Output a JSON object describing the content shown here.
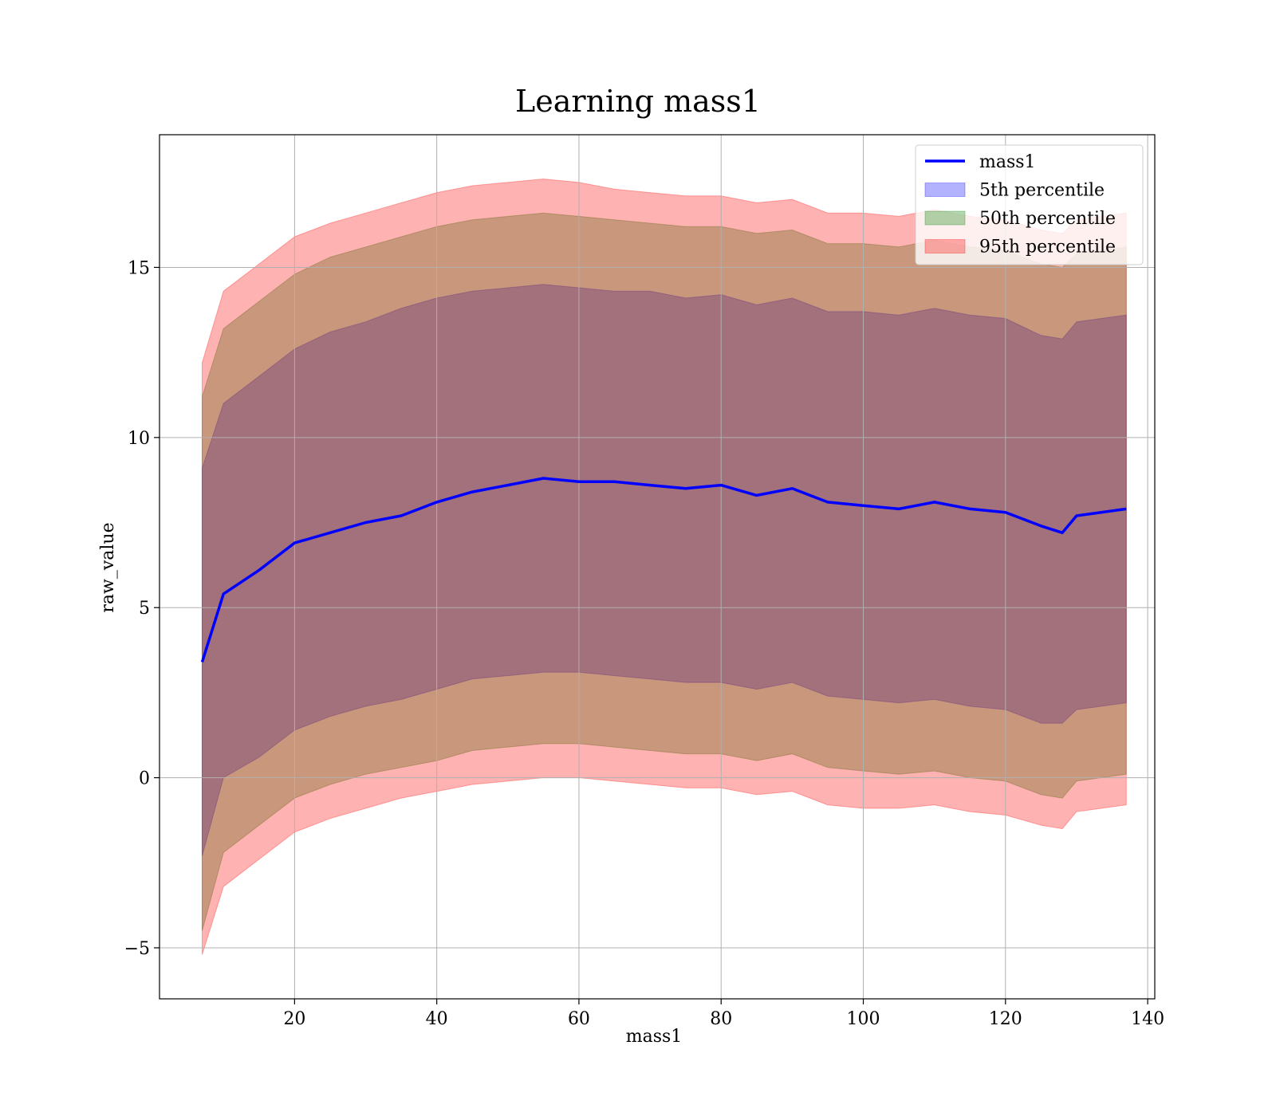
{
  "chart_data": {
    "type": "area",
    "title": "Learning mass1",
    "xlabel": "mass1",
    "ylabel": "raw_value",
    "xlim": [
      1,
      141
    ],
    "ylim": [
      -6.5,
      18.9
    ],
    "x_ticks": [
      20,
      40,
      60,
      80,
      100,
      120,
      140
    ],
    "y_ticks": [
      -5,
      0,
      5,
      10,
      15
    ],
    "x_tick_labels": [
      "20",
      "40",
      "60",
      "80",
      "100",
      "120",
      "140"
    ],
    "y_tick_labels": [
      "−5",
      "0",
      "5",
      "10",
      "15"
    ],
    "grid": true,
    "legend_position": "top-right",
    "legend": [
      {
        "label": "mass1",
        "kind": "line",
        "color": "#0000ff"
      },
      {
        "label": "5th percentile",
        "kind": "patch",
        "color": "#0000ff"
      },
      {
        "label": "50th percentile",
        "kind": "patch",
        "color": "#008000"
      },
      {
        "label": "95th percentile",
        "kind": "patch",
        "color": "#ff0000"
      }
    ],
    "x": [
      7,
      10,
      15,
      20,
      25,
      30,
      35,
      40,
      45,
      50,
      55,
      60,
      65,
      70,
      75,
      80,
      85,
      90,
      95,
      100,
      105,
      110,
      115,
      120,
      125,
      128,
      130,
      137
    ],
    "series": [
      {
        "name": "mass1",
        "kind": "line",
        "color": "#0000ff",
        "values": [
          3.4,
          5.4,
          6.1,
          6.9,
          7.2,
          7.5,
          7.7,
          8.1,
          8.4,
          8.6,
          8.8,
          8.7,
          8.7,
          8.6,
          8.5,
          8.6,
          8.3,
          8.5,
          8.1,
          8.0,
          7.9,
          8.1,
          7.9,
          7.8,
          7.4,
          7.2,
          7.7,
          7.9
        ]
      },
      {
        "name": "5th percentile",
        "kind": "band",
        "color": "#0000ff",
        "lower": [
          -2.3,
          0.0,
          0.6,
          1.4,
          1.8,
          2.1,
          2.3,
          2.6,
          2.9,
          3.0,
          3.1,
          3.1,
          3.0,
          2.9,
          2.8,
          2.8,
          2.6,
          2.8,
          2.4,
          2.3,
          2.2,
          2.3,
          2.1,
          2.0,
          1.6,
          1.6,
          2.0,
          2.2
        ],
        "upper": [
          9.1,
          11.0,
          11.8,
          12.6,
          13.1,
          13.4,
          13.8,
          14.1,
          14.3,
          14.4,
          14.5,
          14.4,
          14.3,
          14.3,
          14.1,
          14.2,
          13.9,
          14.1,
          13.7,
          13.7,
          13.6,
          13.8,
          13.6,
          13.5,
          13.0,
          12.9,
          13.4,
          13.6
        ]
      },
      {
        "name": "50th percentile",
        "kind": "band",
        "color": "#008000",
        "lower": [
          -4.5,
          -2.2,
          -1.4,
          -0.6,
          -0.2,
          0.1,
          0.3,
          0.5,
          0.8,
          0.9,
          1.0,
          1.0,
          0.9,
          0.8,
          0.7,
          0.7,
          0.5,
          0.7,
          0.3,
          0.2,
          0.1,
          0.2,
          0.0,
          -0.1,
          -0.5,
          -0.6,
          -0.1,
          0.1
        ],
        "upper": [
          11.2,
          13.2,
          14.0,
          14.8,
          15.3,
          15.6,
          15.9,
          16.2,
          16.4,
          16.5,
          16.6,
          16.5,
          16.4,
          16.3,
          16.2,
          16.2,
          16.0,
          16.1,
          15.7,
          15.7,
          15.6,
          15.8,
          15.6,
          15.5,
          15.1,
          15.0,
          15.4,
          15.6
        ]
      },
      {
        "name": "95th percentile",
        "kind": "band",
        "color": "#ff0000",
        "lower": [
          -5.2,
          -3.2,
          -2.4,
          -1.6,
          -1.2,
          -0.9,
          -0.6,
          -0.4,
          -0.2,
          -0.1,
          0.0,
          0.0,
          -0.1,
          -0.2,
          -0.3,
          -0.3,
          -0.5,
          -0.4,
          -0.8,
          -0.9,
          -0.9,
          -0.8,
          -1.0,
          -1.1,
          -1.4,
          -1.5,
          -1.0,
          -0.8
        ],
        "upper": [
          12.2,
          14.3,
          15.1,
          15.9,
          16.3,
          16.6,
          16.9,
          17.2,
          17.4,
          17.5,
          17.6,
          17.5,
          17.3,
          17.2,
          17.1,
          17.1,
          16.9,
          17.0,
          16.6,
          16.6,
          16.5,
          16.7,
          16.5,
          16.4,
          16.1,
          16.0,
          16.4,
          16.6
        ]
      }
    ]
  }
}
